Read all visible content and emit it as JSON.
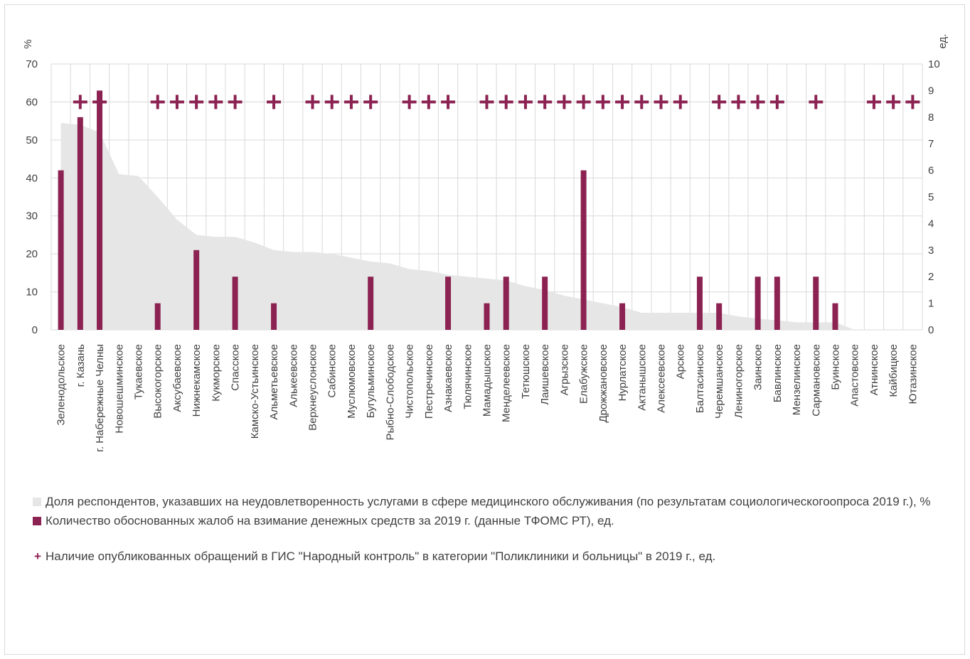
{
  "chart_data": {
    "type": "bar",
    "left_axis_title": "%",
    "right_axis_title": "ед.",
    "left_ylim": [
      0,
      70
    ],
    "left_ticks": [
      "0",
      "10",
      "20",
      "30",
      "40",
      "50",
      "60",
      "70"
    ],
    "right_ylim": [
      0,
      10
    ],
    "right_ticks": [
      "0",
      "1",
      "2",
      "3",
      "4",
      "5",
      "6",
      "7",
      "8",
      "9",
      "10"
    ],
    "grid": true,
    "categories": [
      "Зеленодольское",
      "г. Казань",
      "г. Набережные Челны",
      "Новошешминское",
      "Тукаевское",
      "Высокогорское",
      "Аксубаевское",
      "Нижнекамское",
      "Кукморское",
      "Спасское",
      "Камско-Устьинское",
      "Альметьевское",
      "Алькеевское",
      "Верхнеуслонское",
      "Сабинское",
      "Муслюмовское",
      "Бугульминское",
      "Рыбно-Слободское",
      "Чистопольское",
      "Пестречинское",
      "Азнакаевское",
      "Тюлячинское",
      "Мамадышское",
      "Менделеевское",
      "Тетюшское",
      "Лаишевское",
      "Агрызское",
      "Елабужское",
      "Дрожжановское",
      "Нурлатское",
      "Актанышское",
      "Алексеевское",
      "Арское",
      "Балтасинское",
      "Черемшанское",
      "Лениногорское",
      "Заинское",
      "Бавлинское",
      "Мензелинское",
      "Сармановское",
      "Буинское",
      "Апастовское",
      "Атнинское",
      "Кайбицкое",
      "Ютазинское"
    ],
    "series": [
      {
        "name": "Доля респондентов, указавших на неудовлетворенность услугами в сфере медицинского обслуживания (по результатам социологическогоопроса 2019 г.), %",
        "type": "area",
        "axis": "left",
        "color": "#e6e6e6",
        "values": [
          54.5,
          54,
          52,
          41,
          40.5,
          35,
          29,
          25,
          24.5,
          24.5,
          23,
          21,
          20.5,
          20.5,
          20,
          19,
          18,
          17.5,
          16,
          15.5,
          14.5,
          14,
          13.5,
          13,
          11.5,
          10.5,
          9,
          8,
          7,
          6,
          4.5,
          4.5,
          4.5,
          4.5,
          4.5,
          3.5,
          3,
          2.5,
          2,
          2,
          2,
          0,
          0,
          0,
          0
        ]
      },
      {
        "name": "Количество обоснованных жалоб на взимание денежных средств  за 2019 г. (данные ТФОМС РТ), ед.",
        "type": "bar",
        "axis": "right",
        "color": "#8b2252",
        "values": [
          6,
          8,
          9,
          0,
          0,
          1,
          0,
          3,
          0,
          2,
          0,
          1,
          0,
          0,
          0,
          0,
          2,
          0,
          0,
          0,
          2,
          0,
          1,
          2,
          0,
          2,
          0,
          6,
          0,
          1,
          0,
          0,
          0,
          2,
          1,
          0,
          2,
          2,
          0,
          2,
          1,
          0,
          0,
          0,
          0
        ]
      },
      {
        "name": "Наличие опубликованных обращений в ГИС \"Народный контроль\" в категории \"Поликлиники и больницы\" в 2019 г., ед.",
        "type": "marker",
        "axis": "left",
        "marker_level": 60,
        "color": "#8b2252",
        "values": [
          0,
          1,
          1,
          0,
          0,
          1,
          1,
          1,
          1,
          1,
          0,
          1,
          0,
          1,
          1,
          1,
          1,
          0,
          1,
          1,
          1,
          0,
          1,
          1,
          1,
          1,
          1,
          1,
          1,
          1,
          1,
          1,
          1,
          0,
          1,
          1,
          1,
          1,
          0,
          1,
          0,
          0,
          1,
          1,
          1
        ]
      }
    ]
  }
}
